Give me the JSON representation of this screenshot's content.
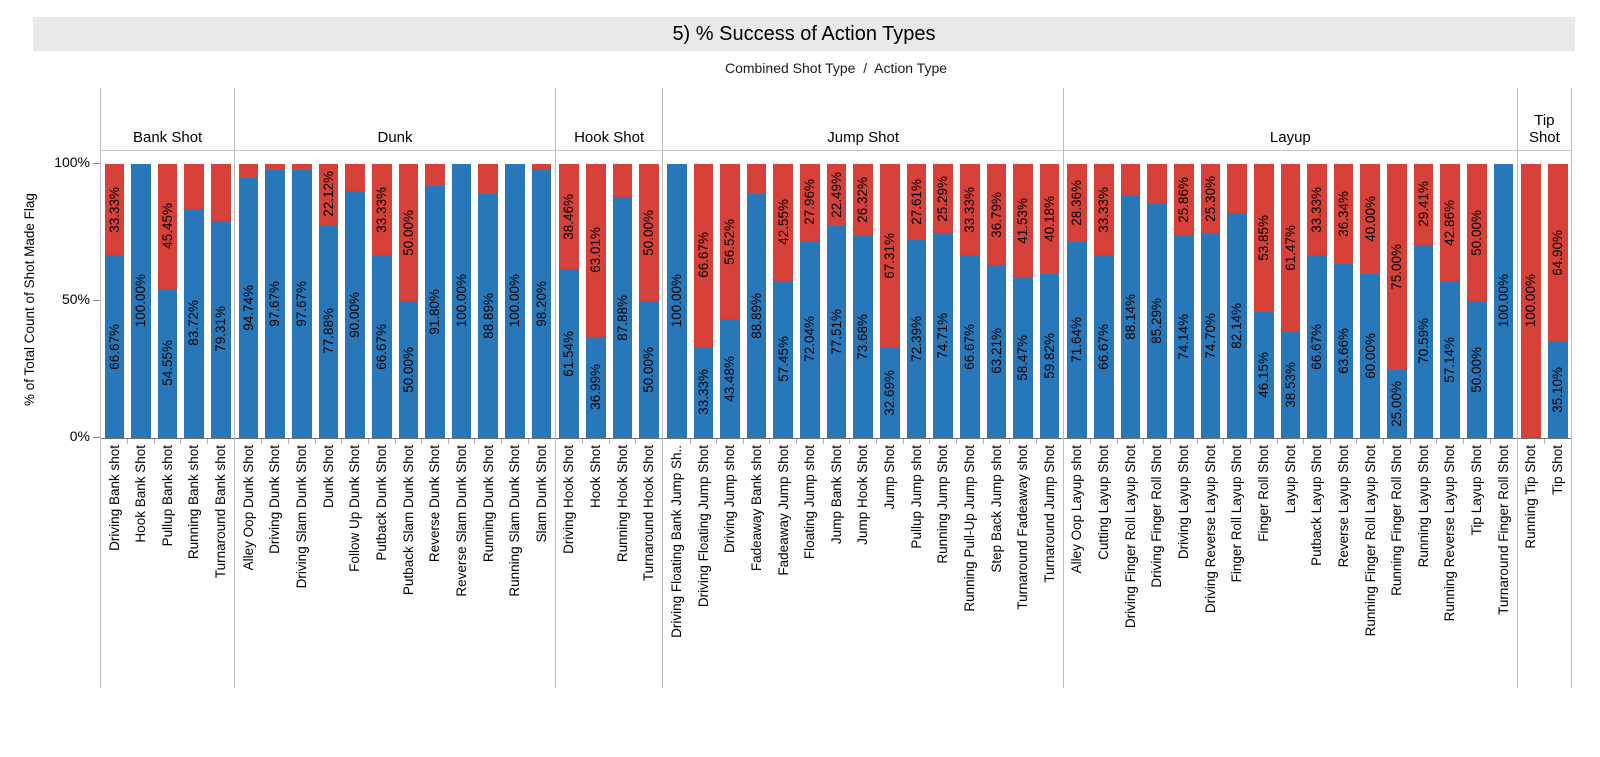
{
  "title": "5) % Success of Action Types",
  "subtitle": "Combined Shot Type  /  Action Type",
  "y_axis": {
    "title": "% of Total Count of Shot Made Flag",
    "ticks": [
      "100%",
      "50%",
      "0%"
    ]
  },
  "colors": {
    "made_blue": "#2878b9",
    "missed_red": "#d6413a"
  },
  "chart_data": {
    "type": "bar",
    "stacked": true,
    "unit": "percent",
    "ylabel": "% of Total Count of Shot Made Flag",
    "ylim": [
      0,
      100
    ],
    "grid": false,
    "segment_order": [
      "missed (red, top)",
      "made (blue, bottom)"
    ],
    "groups": [
      {
        "label": "Bank Shot",
        "bars": [
          {
            "category": "Driving Bank shot",
            "made": 66.67,
            "missed": 33.33,
            "made_label": "66.67%",
            "missed_label": "33.33%"
          },
          {
            "category": "Hook Bank Shot",
            "made": 100.0,
            "missed": 0,
            "made_label": "100.00%",
            "missed_label": null
          },
          {
            "category": "Pullup Bank shot",
            "made": 54.55,
            "missed": 45.45,
            "made_label": "54.55%",
            "missed_label": "45.45%"
          },
          {
            "category": "Running Bank shot",
            "made": 83.72,
            "missed": 16.28,
            "made_label": "83.72%",
            "missed_label": null
          },
          {
            "category": "Turnaround Bank shot",
            "made": 79.31,
            "missed": 20.69,
            "made_label": "79.31%",
            "missed_label": null
          }
        ]
      },
      {
        "label": "Dunk",
        "bars": [
          {
            "category": "Alley Oop Dunk Shot",
            "made": 94.74,
            "missed": 5.26,
            "made_label": "94.74%",
            "missed_label": null
          },
          {
            "category": "Driving Dunk Shot",
            "made": 97.67,
            "missed": 2.33,
            "made_label": "97.67%",
            "missed_label": null
          },
          {
            "category": "Driving Slam Dunk Shot",
            "made": 97.67,
            "missed": 2.33,
            "made_label": "97.67%",
            "missed_label": null
          },
          {
            "category": "Dunk Shot",
            "made": 77.88,
            "missed": 22.12,
            "made_label": "77.88%",
            "missed_label": "22.12%"
          },
          {
            "category": "Follow Up Dunk Shot",
            "made": 90.0,
            "missed": 10.0,
            "made_label": "90.00%",
            "missed_label": null
          },
          {
            "category": "Putback Dunk Shot",
            "made": 66.67,
            "missed": 33.33,
            "made_label": "66.67%",
            "missed_label": "33.33%"
          },
          {
            "category": "Putback Slam Dunk Shot",
            "made": 50.0,
            "missed": 50.0,
            "made_label": "50.00%",
            "missed_label": "50.00%"
          },
          {
            "category": "Reverse Dunk Shot",
            "made": 91.8,
            "missed": 8.2,
            "made_label": "91.80%",
            "missed_label": null
          },
          {
            "category": "Reverse Slam Dunk Shot",
            "made": 100.0,
            "missed": 0,
            "made_label": "100.00%",
            "missed_label": null
          },
          {
            "category": "Running Dunk Shot",
            "made": 88.89,
            "missed": 11.11,
            "made_label": "88.89%",
            "missed_label": null
          },
          {
            "category": "Running Slam Dunk Shot",
            "made": 100.0,
            "missed": 0,
            "made_label": "100.00%",
            "missed_label": null
          },
          {
            "category": "Slam Dunk Shot",
            "made": 98.2,
            "missed": 1.8,
            "made_label": "98.20%",
            "missed_label": null
          }
        ]
      },
      {
        "label": "Hook Shot",
        "bars": [
          {
            "category": "Driving Hook Shot",
            "made": 61.54,
            "missed": 38.46,
            "made_label": "61.54%",
            "missed_label": "38.46%"
          },
          {
            "category": "Hook Shot",
            "made": 36.99,
            "missed": 63.01,
            "made_label": "36.99%",
            "missed_label": "63.01%"
          },
          {
            "category": "Running Hook Shot",
            "made": 87.88,
            "missed": 12.12,
            "made_label": "87.88%",
            "missed_label": null
          },
          {
            "category": "Turnaround Hook Shot",
            "made": 50.0,
            "missed": 50.0,
            "made_label": "50.00%",
            "missed_label": "50.00%"
          }
        ]
      },
      {
        "label": "Jump Shot",
        "bars": [
          {
            "category": "Driving Floating Bank Jump Sh..",
            "made": 100.0,
            "missed": 0,
            "made_label": "100.00%",
            "missed_label": null
          },
          {
            "category": "Driving Floating Jump Shot",
            "made": 33.33,
            "missed": 66.67,
            "made_label": "33.33%",
            "missed_label": "66.67%"
          },
          {
            "category": "Driving Jump shot",
            "made": 43.48,
            "missed": 56.52,
            "made_label": "43.48%",
            "missed_label": "56.52%"
          },
          {
            "category": "Fadeaway Bank shot",
            "made": 88.89,
            "missed": 11.11,
            "made_label": "88.89%",
            "missed_label": null
          },
          {
            "category": "Fadeaway Jump Shot",
            "made": 57.45,
            "missed": 42.55,
            "made_label": "57.45%",
            "missed_label": "42.55%"
          },
          {
            "category": "Floating Jump shot",
            "made": 72.04,
            "missed": 27.96,
            "made_label": "72.04%",
            "missed_label": "27.96%"
          },
          {
            "category": "Jump Bank Shot",
            "made": 77.51,
            "missed": 22.49,
            "made_label": "77.51%",
            "missed_label": "22.49%"
          },
          {
            "category": "Jump Hook Shot",
            "made": 73.68,
            "missed": 26.32,
            "made_label": "73.68%",
            "missed_label": "26.32%"
          },
          {
            "category": "Jump Shot",
            "made": 32.69,
            "missed": 67.31,
            "made_label": "32.69%",
            "missed_label": "67.31%"
          },
          {
            "category": "Pullup Jump shot",
            "made": 72.39,
            "missed": 27.61,
            "made_label": "72.39%",
            "missed_label": "27.61%"
          },
          {
            "category": "Running Jump Shot",
            "made": 74.71,
            "missed": 25.29,
            "made_label": "74.71%",
            "missed_label": "25.29%"
          },
          {
            "category": "Running Pull-Up Jump Shot",
            "made": 66.67,
            "missed": 33.33,
            "made_label": "66.67%",
            "missed_label": "33.33%"
          },
          {
            "category": "Step Back Jump shot",
            "made": 63.21,
            "missed": 36.79,
            "made_label": "63.21%",
            "missed_label": "36.79%"
          },
          {
            "category": "Turnaround Fadeaway shot",
            "made": 58.47,
            "missed": 41.53,
            "made_label": "58.47%",
            "missed_label": "41.53%"
          },
          {
            "category": "Turnaround Jump Shot",
            "made": 59.82,
            "missed": 40.18,
            "made_label": "59.82%",
            "missed_label": "40.18%"
          }
        ]
      },
      {
        "label": "Layup",
        "bars": [
          {
            "category": "Alley Oop Layup shot",
            "made": 71.64,
            "missed": 28.36,
            "made_label": "71.64%",
            "missed_label": "28.36%"
          },
          {
            "category": "Cutting Layup Shot",
            "made": 66.67,
            "missed": 33.33,
            "made_label": "66.67%",
            "missed_label": "33.33%"
          },
          {
            "category": "Driving Finger Roll Layup Shot",
            "made": 88.14,
            "missed": 11.86,
            "made_label": "88.14%",
            "missed_label": null
          },
          {
            "category": "Driving Finger Roll Shot",
            "made": 85.29,
            "missed": 14.71,
            "made_label": "85.29%",
            "missed_label": null
          },
          {
            "category": "Driving Layup Shot",
            "made": 74.14,
            "missed": 25.86,
            "made_label": "74.14%",
            "missed_label": "25.86%"
          },
          {
            "category": "Driving Reverse Layup Shot",
            "made": 74.7,
            "missed": 25.3,
            "made_label": "74.70%",
            "missed_label": "25.30%"
          },
          {
            "category": "Finger Roll Layup Shot",
            "made": 82.14,
            "missed": 17.86,
            "made_label": "82.14%",
            "missed_label": null
          },
          {
            "category": "Finger Roll Shot",
            "made": 46.15,
            "missed": 53.85,
            "made_label": "46.15%",
            "missed_label": "53.85%"
          },
          {
            "category": "Layup Shot",
            "made": 38.53,
            "missed": 61.47,
            "made_label": "38.53%",
            "missed_label": "61.47%"
          },
          {
            "category": "Putback Layup Shot",
            "made": 66.67,
            "missed": 33.33,
            "made_label": "66.67%",
            "missed_label": "33.33%"
          },
          {
            "category": "Reverse Layup Shot",
            "made": 63.66,
            "missed": 36.34,
            "made_label": "63.66%",
            "missed_label": "36.34%"
          },
          {
            "category": "Running Finger Roll Layup Shot",
            "made": 60.0,
            "missed": 40.0,
            "made_label": "60.00%",
            "missed_label": "40.00%"
          },
          {
            "category": "Running Finger Roll Shot",
            "made": 25.0,
            "missed": 75.0,
            "made_label": "25.00%",
            "missed_label": "75.00%"
          },
          {
            "category": "Running Layup Shot",
            "made": 70.59,
            "missed": 29.41,
            "made_label": "70.59%",
            "missed_label": "29.41%"
          },
          {
            "category": "Running Reverse Layup Shot",
            "made": 57.14,
            "missed": 42.86,
            "made_label": "57.14%",
            "missed_label": "42.86%"
          },
          {
            "category": "Tip Layup Shot",
            "made": 50.0,
            "missed": 50.0,
            "made_label": "50.00%",
            "missed_label": "50.00%"
          },
          {
            "category": "Turnaround Finger Roll Shot",
            "made": 100.0,
            "missed": 0,
            "made_label": "100.00%",
            "missed_label": null
          }
        ]
      },
      {
        "label": "Tip Shot",
        "bars": [
          {
            "category": "Running Tip Shot",
            "made": 0,
            "missed": 100.0,
            "made_label": null,
            "missed_label": "100.00%"
          },
          {
            "category": "Tip Shot",
            "made": 35.1,
            "missed": 64.9,
            "made_label": "35.10%",
            "missed_label": "64.90%"
          }
        ]
      }
    ]
  }
}
